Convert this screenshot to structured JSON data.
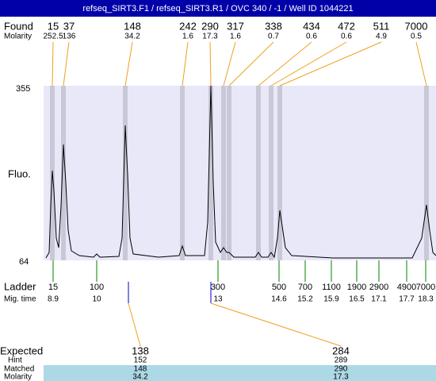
{
  "header": {
    "title": "refseq_SIRT3.F1 / refseq_SIRT3.R1 / OVC 340 / -1 / Well ID 1044221"
  },
  "found": {
    "label": "Found",
    "molarity_label": "Molarity",
    "peaks": [
      {
        "size": 15,
        "molarity": 252.5
      },
      {
        "size": 37,
        "molarity": 136
      },
      {
        "size": 148,
        "molarity": 34.2
      },
      {
        "size": 242,
        "molarity": 1.6
      },
      {
        "size": 290,
        "molarity": 17.3
      },
      {
        "size": 317,
        "molarity": 1.6
      },
      {
        "size": 338,
        "molarity": 0.7
      },
      {
        "size": 434,
        "molarity": 0.6
      },
      {
        "size": 472,
        "molarity": 0.6
      },
      {
        "size": 511,
        "molarity": 4.9
      },
      {
        "size": 7000,
        "molarity": 0.5
      }
    ]
  },
  "axis": {
    "label": "Fluo.",
    "top": 355,
    "bottom": 64
  },
  "ladder": {
    "label": "Ladder",
    "mig_label": "Mig. time",
    "points": [
      {
        "size": 15,
        "time": 8.9
      },
      {
        "size": 100,
        "time": 10
      },
      {
        "size": 300,
        "time": 13
      },
      {
        "size": 500,
        "time": 14.6
      },
      {
        "size": 700,
        "time": 15.2
      },
      {
        "size": 1100,
        "time": 15.9
      },
      {
        "size": 1900,
        "time": 16.5
      },
      {
        "size": 2900,
        "time": 17.1
      },
      {
        "size": 4900,
        "time": 17.7
      },
      {
        "size": 7000,
        "time": 18.3
      }
    ]
  },
  "expected": {
    "expected_label": "Expected",
    "hint_label": "Hint",
    "matched_label": "Matched",
    "molarity_label": "Molarity",
    "items": [
      {
        "expected": 138,
        "hint": 152,
        "matched": 148,
        "molarity": 34.2
      },
      {
        "expected": 284,
        "hint": 289,
        "matched": 290,
        "molarity": 17.3
      }
    ]
  }
}
